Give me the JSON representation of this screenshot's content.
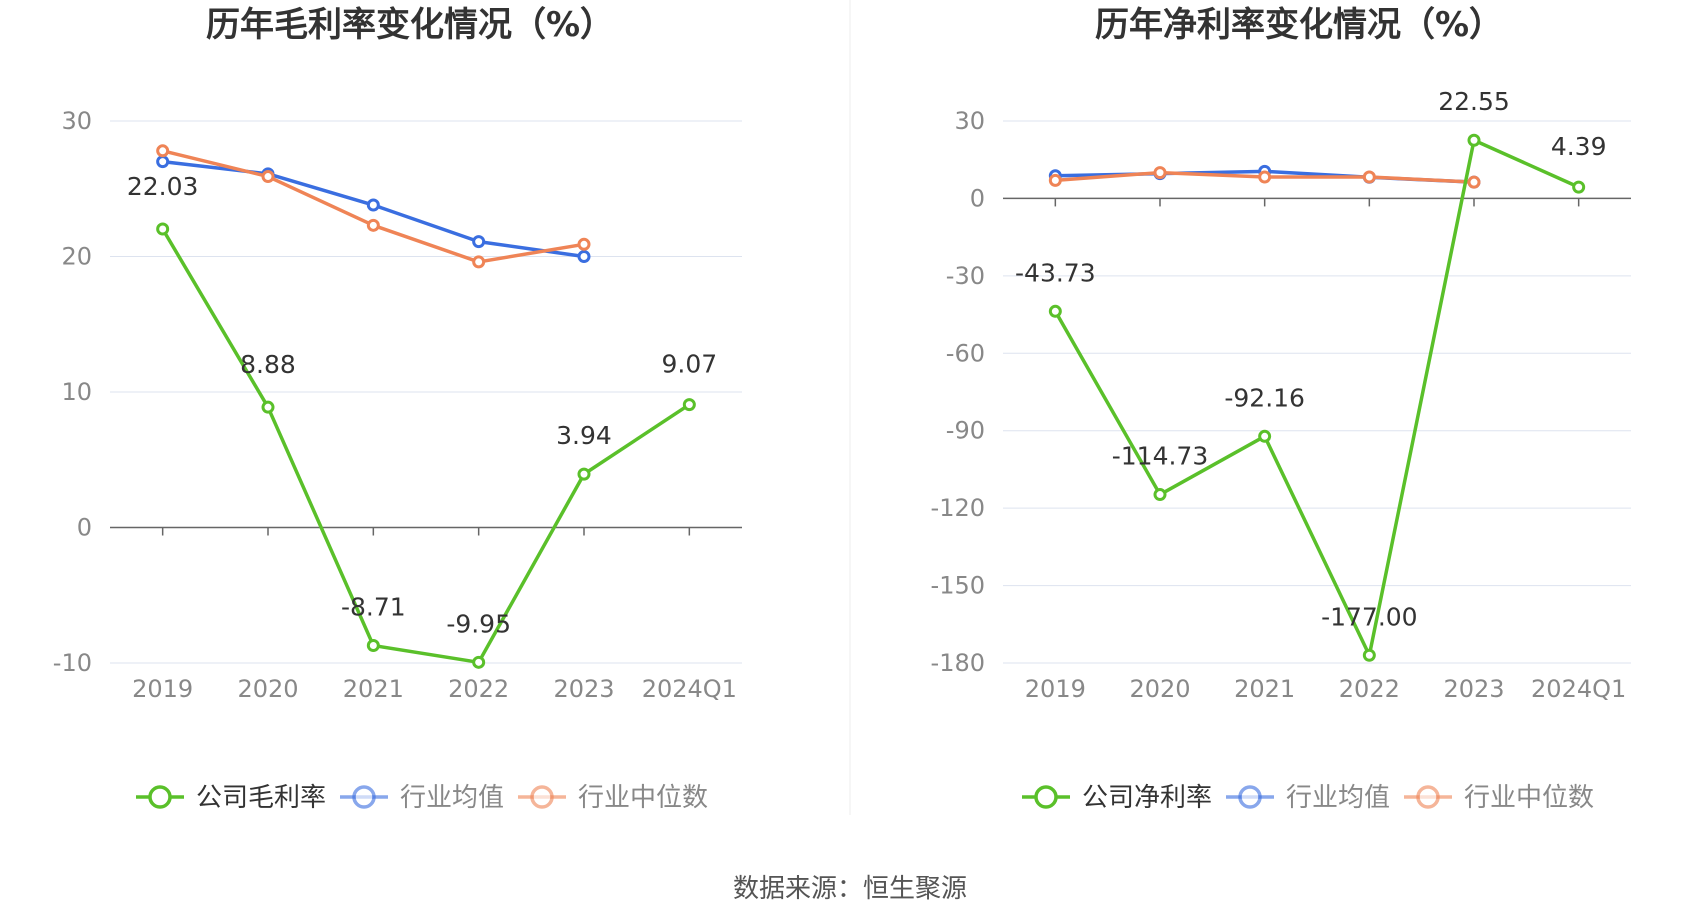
{
  "colors": {
    "company": "#5ac02a",
    "industry_avg": "#3a6ee0",
    "industry_median": "#ef8456",
    "grid": "#dde3ef",
    "axis_text": "#888888",
    "title_text": "#333333"
  },
  "legend": {
    "industry_avg": "行业均值",
    "industry_median": "行业中位数"
  },
  "source_text": "数据来源：恒生聚源",
  "chart_data": [
    {
      "type": "line",
      "title": "历年毛利率变化情况（%）",
      "categories": [
        "2019",
        "2020",
        "2021",
        "2022",
        "2023",
        "2024Q1"
      ],
      "ylim": [
        -10,
        30
      ],
      "yticks": [
        30,
        20,
        10,
        0,
        -10
      ],
      "grid": true,
      "legend_position": "bottom",
      "series": [
        {
          "name": "公司毛利率",
          "key": "company",
          "values": [
            22.03,
            8.88,
            -8.71,
            -9.95,
            3.94,
            9.07
          ],
          "labels": [
            "22.03",
            "8.88",
            "-8.71",
            "-9.95",
            "3.94",
            "9.07"
          ]
        },
        {
          "name": "行业均值",
          "key": "industry_avg",
          "values": [
            27.0,
            26.1,
            23.8,
            21.1,
            20.0,
            null
          ]
        },
        {
          "name": "行业中位数",
          "key": "industry_median",
          "values": [
            27.8,
            25.9,
            22.3,
            19.6,
            20.9,
            null
          ]
        }
      ]
    },
    {
      "type": "line",
      "title": "历年净利率变化情况（%）",
      "categories": [
        "2019",
        "2020",
        "2021",
        "2022",
        "2023",
        "2024Q1"
      ],
      "ylim": [
        -180,
        30
      ],
      "yticks": [
        30,
        0,
        -30,
        -60,
        -90,
        -120,
        -150,
        -180
      ],
      "grid": true,
      "legend_position": "bottom",
      "series": [
        {
          "name": "公司净利率",
          "key": "company",
          "values": [
            -43.73,
            -114.73,
            -92.16,
            -177.0,
            22.55,
            4.39
          ],
          "labels": [
            "-43.73",
            "-114.73",
            "-92.16",
            "-177.00",
            "22.55",
            "4.39"
          ]
        },
        {
          "name": "行业均值",
          "key": "industry_avg",
          "values": [
            8.8,
            9.6,
            10.5,
            8.2,
            6.3,
            null
          ]
        },
        {
          "name": "行业中位数",
          "key": "industry_median",
          "values": [
            7.0,
            10.0,
            8.3,
            8.3,
            6.3,
            null
          ]
        }
      ]
    }
  ]
}
